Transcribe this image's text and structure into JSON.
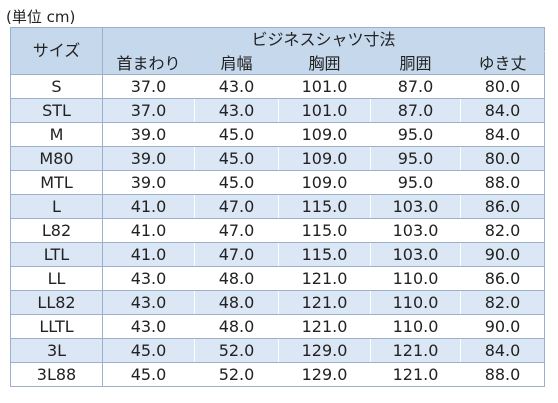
{
  "unit_note": "(単位 cm)",
  "table": {
    "size_header": "サイズ",
    "group_header": "ビジネスシャツ寸法",
    "columns": [
      "首まわり",
      "肩幅",
      "胸囲",
      "胴囲",
      "ゆき丈"
    ],
    "rows": [
      {
        "size": "S",
        "values": [
          "37.0",
          "43.0",
          "101.0",
          "87.0",
          "80.0"
        ]
      },
      {
        "size": "STL",
        "values": [
          "37.0",
          "43.0",
          "101.0",
          "87.0",
          "84.0"
        ]
      },
      {
        "size": "M",
        "values": [
          "39.0",
          "45.0",
          "109.0",
          "95.0",
          "84.0"
        ]
      },
      {
        "size": "M80",
        "values": [
          "39.0",
          "45.0",
          "109.0",
          "95.0",
          "80.0"
        ]
      },
      {
        "size": "MTL",
        "values": [
          "39.0",
          "45.0",
          "109.0",
          "95.0",
          "88.0"
        ]
      },
      {
        "size": "L",
        "values": [
          "41.0",
          "47.0",
          "115.0",
          "103.0",
          "86.0"
        ]
      },
      {
        "size": "L82",
        "values": [
          "41.0",
          "47.0",
          "115.0",
          "103.0",
          "82.0"
        ]
      },
      {
        "size": "LTL",
        "values": [
          "41.0",
          "47.0",
          "115.0",
          "103.0",
          "90.0"
        ]
      },
      {
        "size": "LL",
        "values": [
          "43.0",
          "48.0",
          "121.0",
          "110.0",
          "86.0"
        ]
      },
      {
        "size": "LL82",
        "values": [
          "43.0",
          "48.0",
          "121.0",
          "110.0",
          "82.0"
        ]
      },
      {
        "size": "LLTL",
        "values": [
          "43.0",
          "48.0",
          "121.0",
          "110.0",
          "90.0"
        ]
      },
      {
        "size": "3L",
        "values": [
          "45.0",
          "52.0",
          "129.0",
          "121.0",
          "84.0"
        ]
      },
      {
        "size": "3L88",
        "values": [
          "45.0",
          "52.0",
          "129.0",
          "121.0",
          "88.0"
        ]
      }
    ]
  }
}
